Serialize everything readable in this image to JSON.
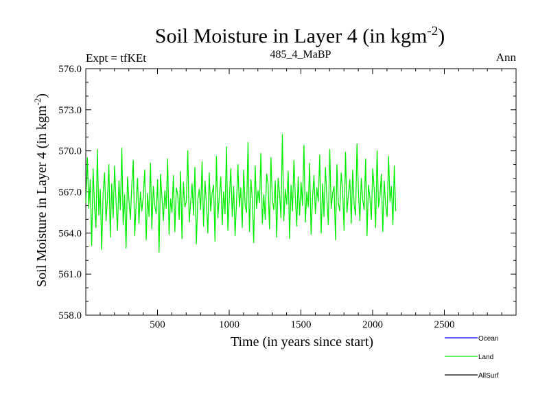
{
  "chart_data": {
    "type": "line",
    "title": "Soil Moisture in Layer 4 (in kgm",
    "title_superscript": "-2",
    "title_suffix": ")",
    "top_left_label": "Expt = tfKEt",
    "top_center_label": "485_4_MaBP",
    "top_right_label": "Ann",
    "xlabel": "Time (in years since start)",
    "ylabel": "Soil Moisture in Layer 4 (in kgm",
    "ylabel_superscript": "-2",
    "ylabel_suffix": ")",
    "xlim": [
      0,
      3000
    ],
    "ylim": [
      558.0,
      576.0
    ],
    "x_ticks": [
      500,
      1000,
      1500,
      2000,
      2500
    ],
    "x_tick_labels": [
      "500",
      "1000",
      "1500",
      "2000",
      "2500"
    ],
    "y_ticks": [
      558.0,
      561.0,
      564.0,
      567.0,
      570.0,
      573.0,
      576.0
    ],
    "y_tick_labels": [
      "558.0",
      "561.0",
      "564.0",
      "567.0",
      "570.0",
      "573.0",
      "576.0"
    ],
    "grid": false,
    "legend_placement": "bottom-right",
    "series": [
      {
        "name": "Land",
        "color": "#00ee00",
        "x_start": 1,
        "x_step": 10,
        "values": [
          566.2,
          569.5,
          565.8,
          567.9,
          563.1,
          568.7,
          566.0,
          564.4,
          570.1,
          565.3,
          567.2,
          562.8,
          566.9,
          568.4,
          564.9,
          566.5,
          569.0,
          563.7,
          567.6,
          565.1,
          568.9,
          566.3,
          564.2,
          567.8,
          565.7,
          570.2,
          564.6,
          566.8,
          562.9,
          568.1,
          566.4,
          565.0,
          567.5,
          569.3,
          563.8,
          566.1,
          568.0,
          564.7,
          567.0,
          565.6,
          566.7,
          568.6,
          563.5,
          566.9,
          565.2,
          569.1,
          564.3,
          567.4,
          566.0,
          565.4,
          567.9,
          562.6,
          568.3,
          566.6,
          564.9,
          567.1,
          565.8,
          569.4,
          563.9,
          566.5,
          565.5,
          568.2,
          564.1,
          567.3,
          566.8,
          565.0,
          568.5,
          563.6,
          567.7,
          565.9,
          566.3,
          570.0,
          564.8,
          566.2,
          567.6,
          565.3,
          568.8,
          563.2,
          566.4,
          567.2,
          565.7,
          569.2,
          564.5,
          567.8,
          566.1,
          564.0,
          568.4,
          565.6,
          566.9,
          567.5,
          563.4,
          569.6,
          565.1,
          566.7,
          568.1,
          564.6,
          567.0,
          565.4,
          570.3,
          564.2,
          566.6,
          568.7,
          565.2,
          567.4,
          563.8,
          566.3,
          569.0,
          565.9,
          567.3,
          564.4,
          568.6,
          566.0,
          565.5,
          570.6,
          564.1,
          567.9,
          566.5,
          563.3,
          568.9,
          565.8,
          567.1,
          566.2,
          569.8,
          564.7,
          566.8,
          565.0,
          568.3,
          567.6,
          564.3,
          569.5,
          566.4,
          565.7,
          567.8,
          563.7,
          568.0,
          566.9,
          565.1,
          571.2,
          564.9,
          567.2,
          566.1,
          568.5,
          563.6,
          567.5,
          565.6,
          569.3,
          566.7,
          564.5,
          568.1,
          565.3,
          567.7,
          566.0,
          570.4,
          564.8,
          567.0,
          565.9,
          569.1,
          563.9,
          566.6,
          568.2,
          565.4,
          567.3,
          566.3,
          569.7,
          564.0,
          567.6,
          565.2,
          568.8,
          566.5,
          564.6,
          570.1,
          565.8,
          566.9,
          567.4,
          563.5,
          569.0,
          566.2,
          565.6,
          568.4,
          567.1,
          564.2,
          569.9,
          565.5,
          566.8,
          567.9,
          564.7,
          568.6,
          566.1,
          565.3,
          570.5,
          567.0,
          564.9,
          568.0,
          566.4,
          565.7,
          569.4,
          563.8,
          567.5,
          566.6,
          565.0,
          568.7,
          567.2,
          564.4,
          570.0,
          565.9,
          566.7,
          568.3,
          564.1,
          567.8,
          566.0,
          565.2,
          569.6,
          566.3,
          567.4,
          564.6,
          568.9,
          565.6
        ]
      },
      {
        "name": "Ocean",
        "color": "#0000ff",
        "values": []
      },
      {
        "name": "AllSurf",
        "color": "#000000",
        "values": []
      }
    ]
  }
}
